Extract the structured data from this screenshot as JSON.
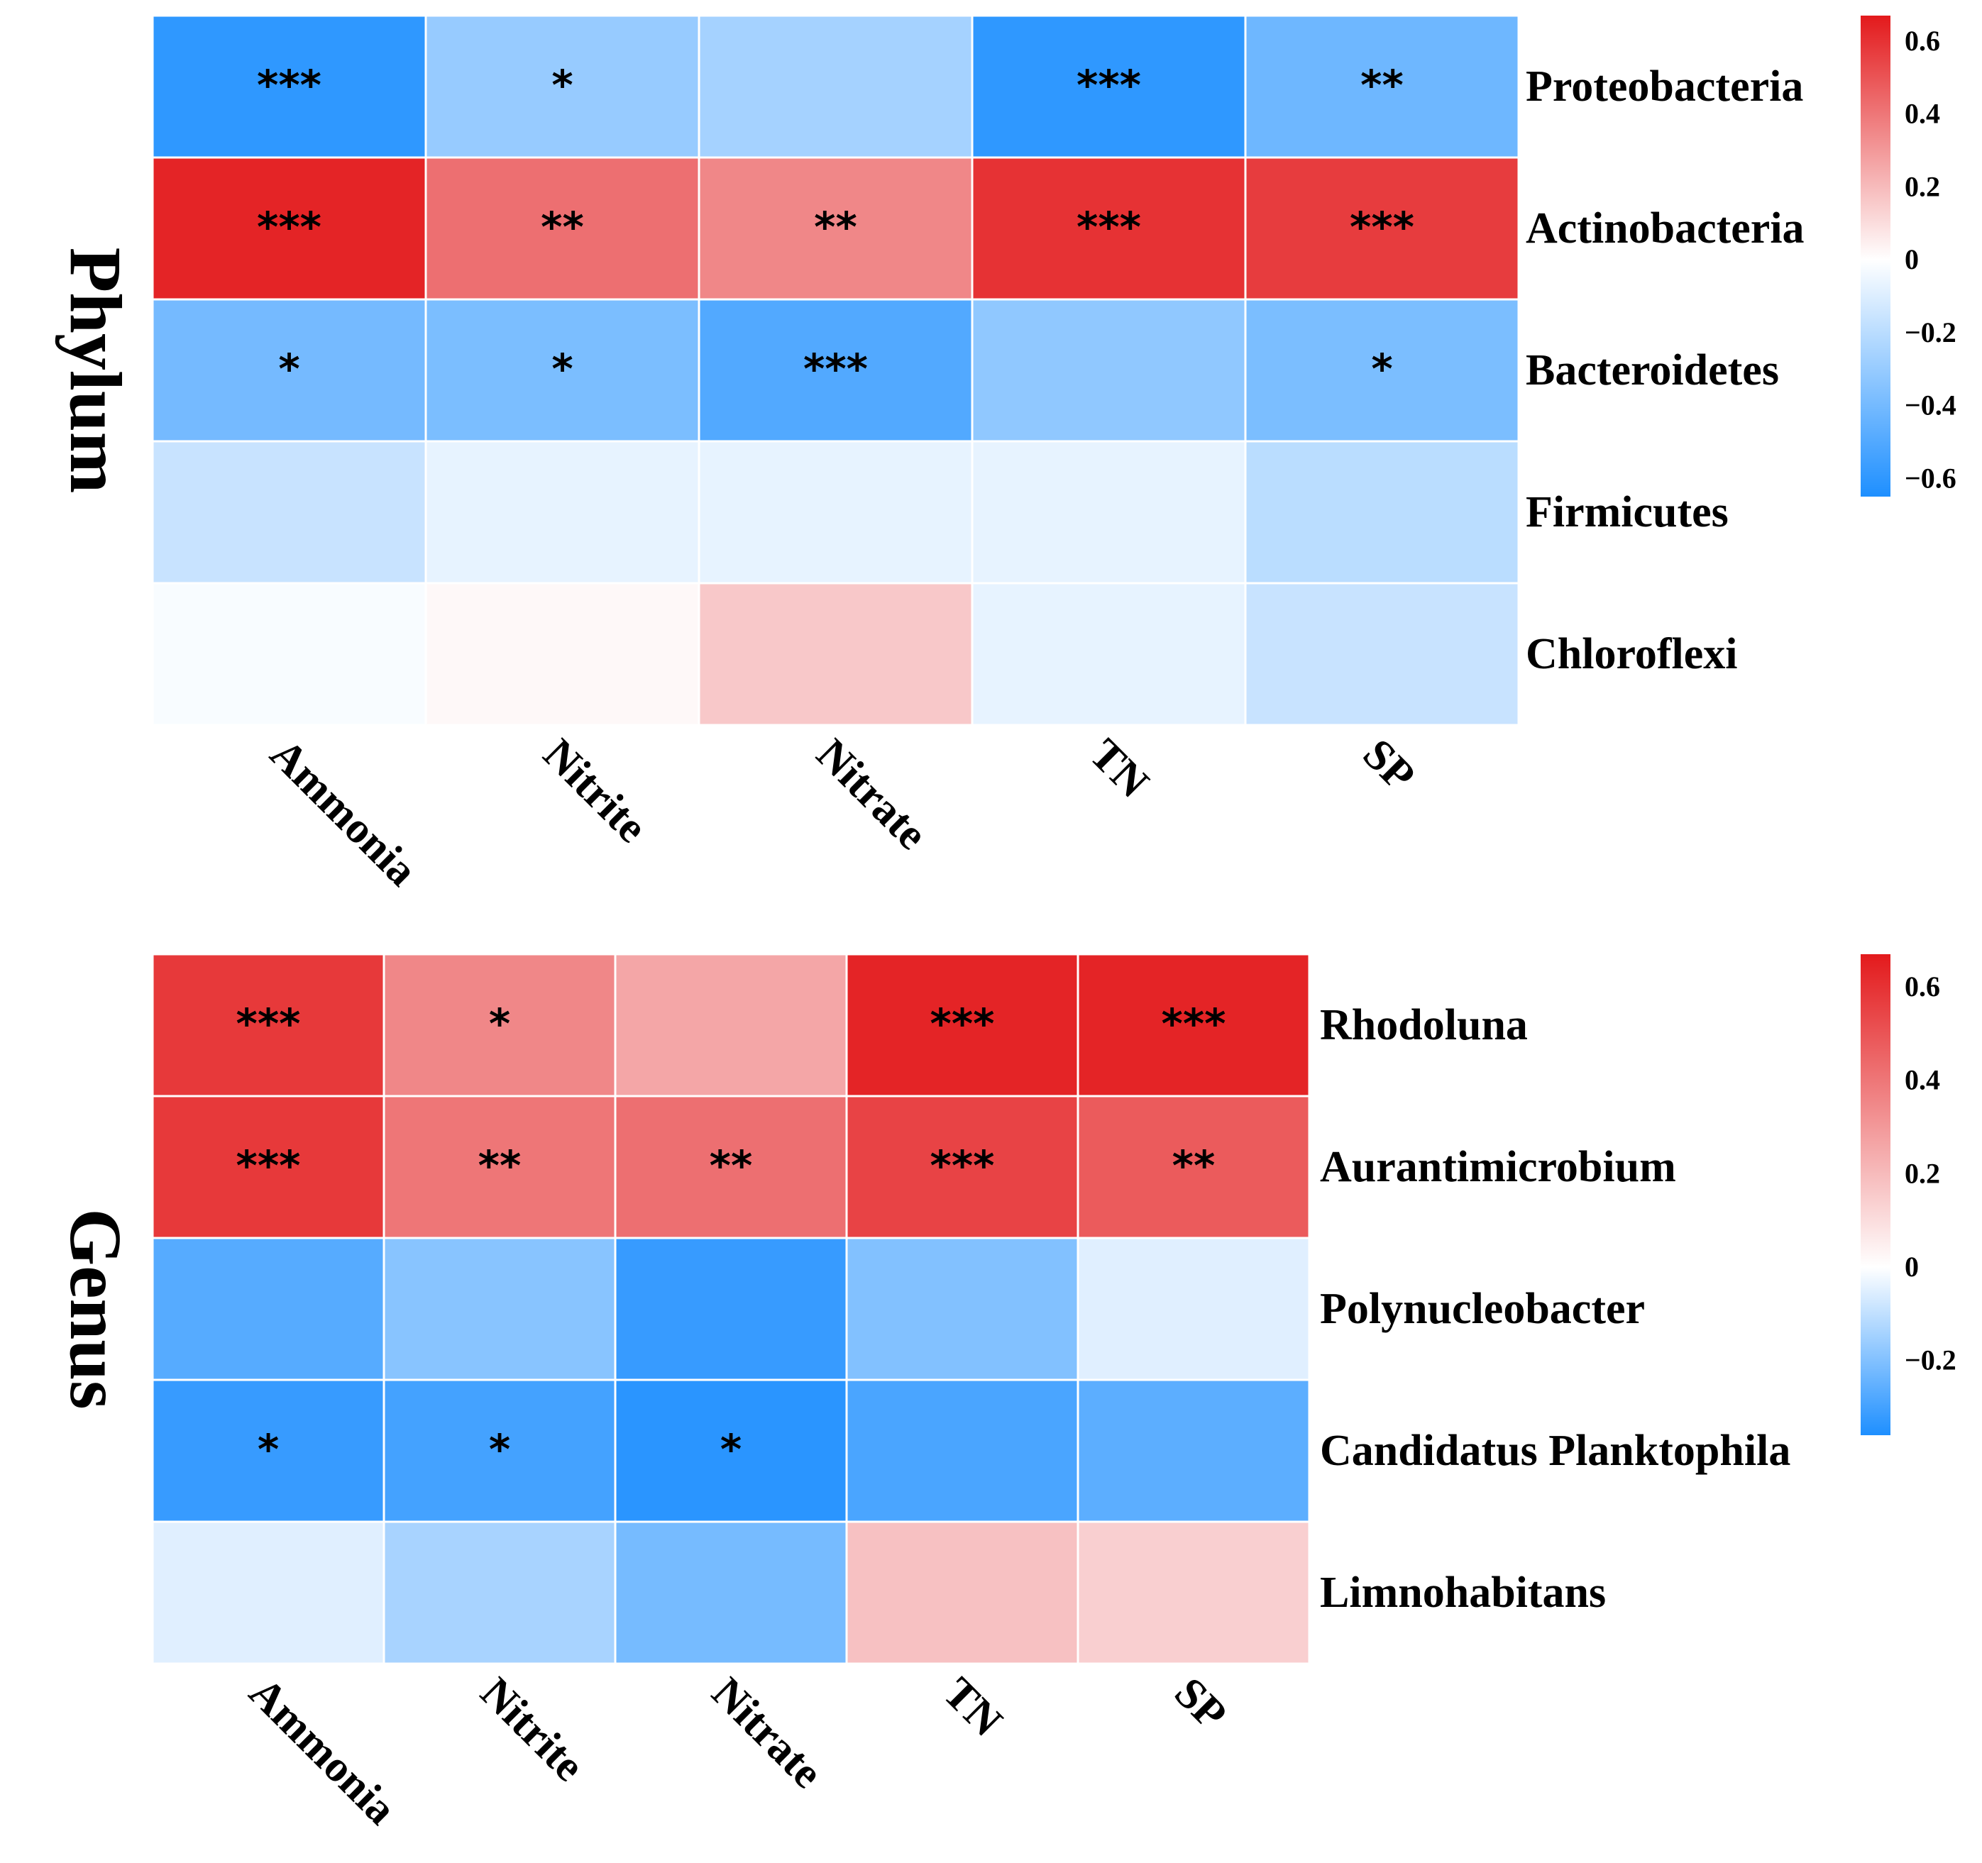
{
  "colors": {
    "negative": "#1e8fff",
    "neutral": "#ffffff",
    "positive": "#e31a1c",
    "grid": "#ffffff"
  },
  "chart_data": [
    {
      "type": "heatmap",
      "title": "Phylum",
      "columns": [
        "Ammonia",
        "Nitrite",
        "Nitrate",
        "TN",
        "SP"
      ],
      "rows": [
        "Proteobacteria",
        "Actinobacteria",
        "Bacteroidetes",
        "Firmicutes",
        "Chloroflexi"
      ],
      "values": [
        [
          -0.6,
          -0.3,
          -0.26,
          -0.6,
          -0.42
        ],
        [
          0.64,
          0.42,
          0.35,
          0.6,
          0.57
        ],
        [
          -0.4,
          -0.38,
          -0.5,
          -0.32,
          -0.38
        ],
        [
          -0.16,
          -0.07,
          -0.07,
          -0.07,
          -0.2
        ],
        [
          -0.02,
          0.02,
          0.16,
          -0.07,
          -0.16
        ]
      ],
      "significance": [
        [
          "***",
          "*",
          "",
          "***",
          "**"
        ],
        [
          "***",
          "**",
          "**",
          "***",
          "***"
        ],
        [
          "*",
          "*",
          "***",
          "",
          "*"
        ],
        [
          "",
          "",
          "",
          "",
          ""
        ],
        [
          "",
          "",
          "",
          "",
          ""
        ]
      ],
      "colorbar": {
        "min": -0.65,
        "max": 0.67,
        "ticks": [
          0.6,
          0.4,
          0.2,
          0,
          -0.2,
          -0.4,
          -0.6
        ],
        "tick_labels": [
          "0.6",
          "0.4",
          "0.2",
          "0",
          "−0.2",
          "−0.4",
          "−0.6"
        ]
      }
    },
    {
      "type": "heatmap",
      "title": "Genus",
      "columns": [
        "Ammonia",
        "Nitrite",
        "Nitrate",
        "TN",
        "SP"
      ],
      "rows": [
        "Rhodoluna",
        "Aurantimicrobium",
        "Polynucleobacter",
        "Candidatus Planktophila",
        "Limnohabitans"
      ],
      "values": [
        [
          0.58,
          0.35,
          0.26,
          0.64,
          0.64
        ],
        [
          0.58,
          0.4,
          0.42,
          0.55,
          0.48
        ],
        [
          -0.27,
          -0.19,
          -0.32,
          -0.2,
          -0.05
        ],
        [
          -0.32,
          -0.3,
          -0.34,
          -0.29,
          -0.26
        ],
        [
          -0.05,
          -0.14,
          -0.22,
          0.18,
          0.14
        ]
      ],
      "significance": [
        [
          "***",
          "*",
          "",
          "***",
          "***"
        ],
        [
          "***",
          "**",
          "**",
          "***",
          "**"
        ],
        [
          "",
          "",
          "",
          "",
          ""
        ],
        [
          "*",
          "*",
          "*",
          "",
          ""
        ],
        [
          "",
          "",
          "",
          "",
          ""
        ]
      ],
      "colorbar": {
        "min": -0.36,
        "max": 0.67,
        "ticks": [
          0.6,
          0.4,
          0.2,
          0,
          -0.2
        ],
        "tick_labels": [
          "0.6",
          "0.4",
          "0.2",
          "0",
          "−0.2"
        ]
      }
    }
  ]
}
